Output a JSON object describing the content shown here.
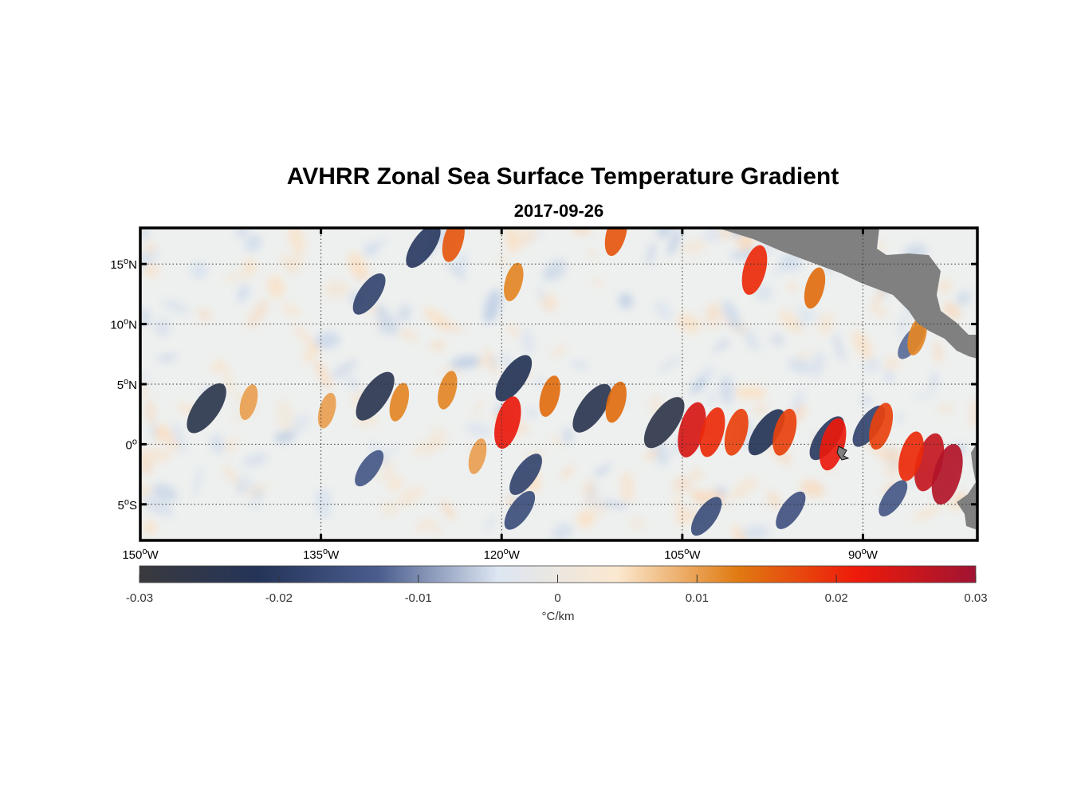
{
  "figure": {
    "title": "AVHRR Zonal Sea Surface Temperature Gradient",
    "subtitle": "2017-09-26"
  },
  "chart_data": {
    "type": "heatmap",
    "variable": "Zonal sea surface temperature gradient",
    "units": "°C/km",
    "x_range": [
      150,
      80.5
    ],
    "y_range": [
      -8,
      18
    ],
    "x_tick_labels": [
      "150",
      "135",
      "120",
      "105",
      "90"
    ],
    "x_tick_values": [
      150,
      135,
      120,
      105,
      90
    ],
    "x_suffix": "W",
    "y_tick_labels": [
      "15",
      "10",
      "5",
      "0",
      "5"
    ],
    "y_tick_values": [
      15,
      10,
      5,
      0,
      -5
    ],
    "y_suffixes": [
      "N",
      "N",
      "N",
      "",
      "S"
    ],
    "grid": true,
    "colorbar": {
      "position": "bottom",
      "ticks": [
        "-0.03",
        "-0.02",
        "-0.01",
        "0",
        "0.01",
        "0.02",
        "0.03"
      ],
      "tick_values": [
        -0.03,
        -0.02,
        -0.01,
        0,
        0.01,
        0.02,
        0.03
      ],
      "label": "°C/km",
      "colors": [
        "#3a3a3e",
        "#243459",
        "#4a5d8e",
        "#dde6f2",
        "#fbe8cf",
        "#e07b12",
        "#ee1a0a",
        "#a01432"
      ]
    },
    "features": [
      {
        "lon": 144.5,
        "lat": 3.0,
        "value": -0.025
      },
      {
        "lon": 130.5,
        "lat": 4.0,
        "value": -0.024
      },
      {
        "lon": 119.0,
        "lat": 5.5,
        "value": -0.022
      },
      {
        "lon": 112.5,
        "lat": 3.0,
        "value": -0.024
      },
      {
        "lon": 106.5,
        "lat": 1.8,
        "value": -0.026
      },
      {
        "lon": 98.0,
        "lat": 1.0,
        "value": -0.022
      },
      {
        "lon": 93.0,
        "lat": 0.5,
        "value": -0.02
      },
      {
        "lon": 89.5,
        "lat": 1.5,
        "value": -0.018
      },
      {
        "lon": 131.0,
        "lat": 12.5,
        "value": -0.018
      },
      {
        "lon": 126.5,
        "lat": 16.5,
        "value": -0.02
      },
      {
        "lon": 118.0,
        "lat": -2.5,
        "value": -0.018
      },
      {
        "lon": 118.5,
        "lat": -5.5,
        "value": -0.016
      },
      {
        "lon": 131.0,
        "lat": -2.0,
        "value": -0.014
      },
      {
        "lon": 103.0,
        "lat": -6.0,
        "value": -0.016
      },
      {
        "lon": 96.0,
        "lat": -5.5,
        "value": -0.015
      },
      {
        "lon": 87.5,
        "lat": -4.5,
        "value": -0.014
      },
      {
        "lon": 86.0,
        "lat": 8.5,
        "value": -0.012
      },
      {
        "lon": 141.0,
        "lat": 3.5,
        "value": 0.01
      },
      {
        "lon": 134.5,
        "lat": 2.8,
        "value": 0.01
      },
      {
        "lon": 128.5,
        "lat": 3.5,
        "value": 0.012
      },
      {
        "lon": 124.5,
        "lat": 4.5,
        "value": 0.012
      },
      {
        "lon": 119.5,
        "lat": 1.8,
        "value": 0.022
      },
      {
        "lon": 116.0,
        "lat": 4.0,
        "value": 0.014
      },
      {
        "lon": 110.5,
        "lat": 3.5,
        "value": 0.014
      },
      {
        "lon": 104.2,
        "lat": 1.2,
        "value": 0.024
      },
      {
        "lon": 102.5,
        "lat": 1.0,
        "value": 0.02
      },
      {
        "lon": 100.5,
        "lat": 1.0,
        "value": 0.018
      },
      {
        "lon": 96.5,
        "lat": 1.0,
        "value": 0.018
      },
      {
        "lon": 92.5,
        "lat": 0.0,
        "value": 0.022
      },
      {
        "lon": 88.5,
        "lat": 1.5,
        "value": 0.018
      },
      {
        "lon": 84.5,
        "lat": -1.5,
        "value": 0.026
      },
      {
        "lon": 83.0,
        "lat": -2.5,
        "value": 0.028
      },
      {
        "lon": 86.0,
        "lat": -1.0,
        "value": 0.02
      },
      {
        "lon": 124.0,
        "lat": 17.0,
        "value": 0.016
      },
      {
        "lon": 110.5,
        "lat": 17.5,
        "value": 0.016
      },
      {
        "lon": 99.0,
        "lat": 14.5,
        "value": 0.02
      },
      {
        "lon": 94.0,
        "lat": 13.0,
        "value": 0.014
      },
      {
        "lon": 119.0,
        "lat": 13.5,
        "value": 0.012
      },
      {
        "lon": 122.0,
        "lat": -1.0,
        "value": 0.01
      },
      {
        "lon": 85.5,
        "lat": 9.0,
        "value": 0.012
      }
    ],
    "land_color": "#808080"
  }
}
